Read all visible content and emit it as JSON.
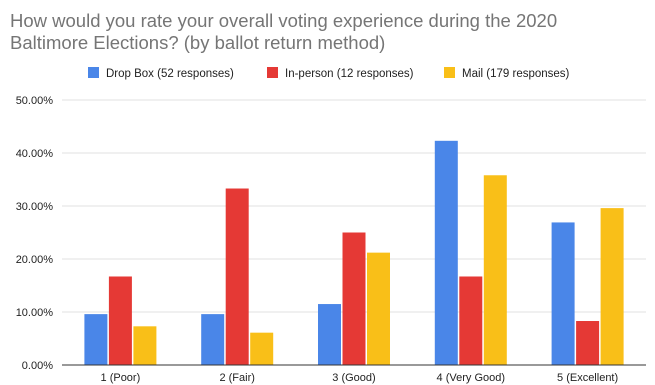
{
  "chart_data": {
    "type": "bar",
    "title_lines": [
      "How would you rate your overall voting experience during the 2020",
      "Baltimore Elections? (by ballot return method)"
    ],
    "categories": [
      "1 (Poor)",
      "2 (Fair)",
      "3 (Good)",
      "4 (Very Good)",
      "5 (Excellent)"
    ],
    "series": [
      {
        "name": "Drop Box (52 responses)",
        "color": "#4a86e8",
        "values": [
          9.6,
          9.6,
          11.5,
          42.3,
          26.9
        ]
      },
      {
        "name": "In-person (12 responses)",
        "color": "#e53935",
        "values": [
          16.7,
          33.3,
          25.0,
          16.7,
          8.3
        ]
      },
      {
        "name": "Mail (179 responses)",
        "color": "#f9bf18",
        "values": [
          7.3,
          6.1,
          21.2,
          35.8,
          29.6
        ]
      }
    ],
    "y_ticks": [
      0,
      10,
      20,
      30,
      40,
      50
    ],
    "y_tick_labels": [
      "0.00%",
      "10.00%",
      "20.00%",
      "30.00%",
      "40.00%",
      "50.00%"
    ],
    "ylim": [
      0,
      50
    ],
    "grid": true,
    "legend_position": "top"
  }
}
